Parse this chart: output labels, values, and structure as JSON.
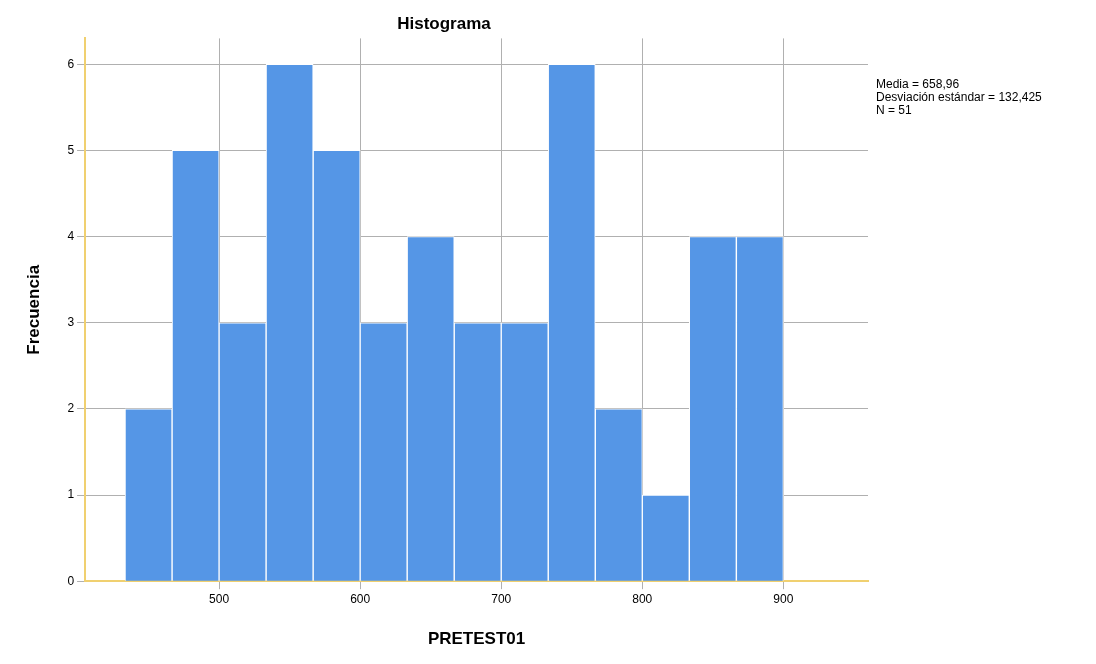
{
  "chart_data": {
    "type": "histogram",
    "title": "Histograma",
    "xlabel": "PRETEST01",
    "ylabel": "Frecuencia",
    "bins": [
      433.3,
      466.7,
      500,
      533.3,
      566.7,
      600,
      633.3,
      666.7,
      700,
      733.3,
      766.7,
      800,
      833.3,
      866.7,
      900
    ],
    "values": [
      2,
      5,
      3,
      6,
      5,
      3,
      4,
      3,
      3,
      6,
      2,
      1,
      4,
      4
    ],
    "color": "#5596e6",
    "xlim": [
      405,
      960
    ],
    "xticks": [
      500,
      600,
      700,
      800,
      900
    ],
    "ylim": [
      0,
      6.3
    ],
    "yticks": [
      0,
      1,
      2,
      3,
      4,
      5,
      6
    ],
    "grid": true,
    "annotations": [
      "Media = 658,96",
      "Desviación estándar = 132,425",
      "N = 51"
    ]
  }
}
